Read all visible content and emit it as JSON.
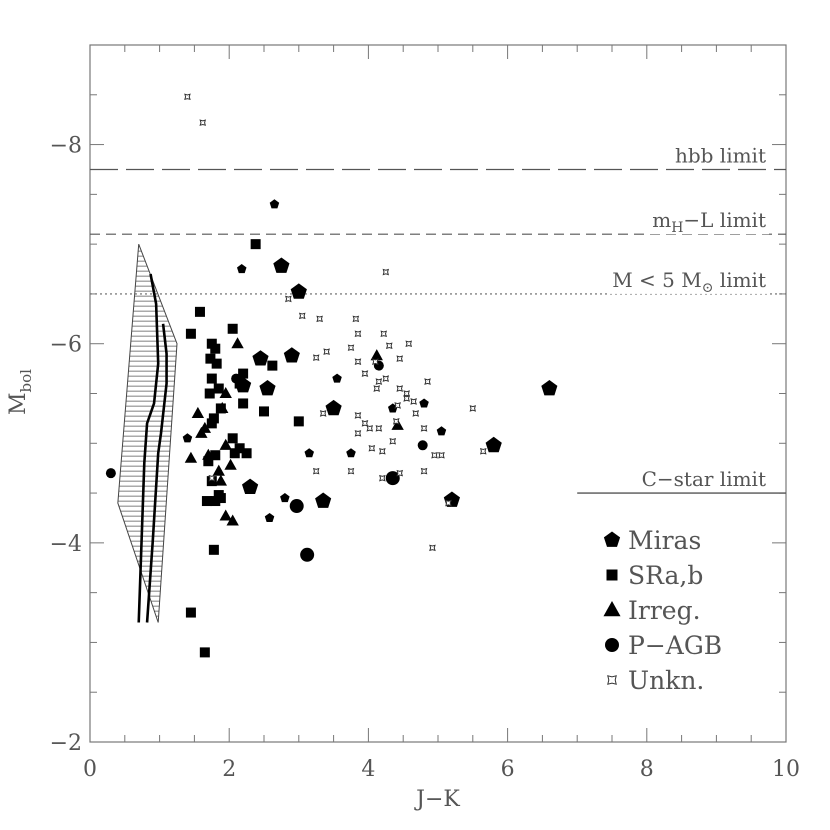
{
  "chart_data": {
    "type": "scatter",
    "xlabel": "J−K",
    "ylabel": {
      "main": "M",
      "sub": "bol"
    },
    "xlim": [
      0,
      10
    ],
    "ylim": [
      -2,
      -9
    ],
    "y_reversed": true,
    "x_ticks": [
      0,
      2,
      4,
      6,
      8,
      10
    ],
    "y_ticks": [
      -2,
      -4,
      -6,
      -8
    ],
    "grid": false,
    "legend_position": "bottom-right",
    "reference_lines": [
      {
        "id": "hbb",
        "label": "hbb limit",
        "y": -7.75,
        "x_range": [
          0,
          10
        ],
        "style": "long-dash"
      },
      {
        "id": "mhl",
        "label_parts": [
          "m",
          "H",
          "−L limit"
        ],
        "y": -7.1,
        "x_range": [
          0,
          10
        ],
        "style": "dash"
      },
      {
        "id": "m5",
        "label_parts": [
          "M < 5 M",
          "⊙",
          " limit"
        ],
        "y": -6.5,
        "x_range": [
          0,
          10
        ],
        "style": "dotted"
      },
      {
        "id": "cstar",
        "label": "C−star limit",
        "y": -4.5,
        "x_range": [
          7.0,
          10
        ],
        "style": "solid"
      }
    ],
    "region": {
      "outline": [
        [
          0.7,
          -7.0
        ],
        [
          1.25,
          -6.0
        ],
        [
          0.98,
          -3.2
        ],
        [
          0.4,
          -4.4
        ]
      ],
      "inner_tracks": [
        [
          [
            0.87,
            -6.7
          ],
          [
            0.95,
            -6.4
          ],
          [
            0.98,
            -5.8
          ],
          [
            0.92,
            -5.4
          ],
          [
            0.82,
            -5.2
          ],
          [
            0.78,
            -4.8
          ],
          [
            0.7,
            -3.2
          ]
        ],
        [
          [
            1.05,
            -6.2
          ],
          [
            1.1,
            -5.9
          ],
          [
            1.1,
            -5.6
          ],
          [
            1.02,
            -5.1
          ],
          [
            0.98,
            -4.9
          ],
          [
            0.9,
            -4.0
          ],
          [
            0.82,
            -3.2
          ]
        ]
      ]
    },
    "series": [
      {
        "name": "Miras",
        "marker": "pentagon",
        "points": [
          [
            2.65,
            -7.4,
            "s"
          ],
          [
            2.18,
            -6.75,
            "s"
          ],
          [
            2.75,
            -6.78,
            "l"
          ],
          [
            3.0,
            -6.52,
            "l"
          ],
          [
            2.45,
            -5.85,
            "l"
          ],
          [
            2.9,
            -5.88,
            "l"
          ],
          [
            2.55,
            -5.55,
            "l"
          ],
          [
            2.2,
            -5.58,
            "l"
          ],
          [
            3.55,
            -5.65,
            "s"
          ],
          [
            3.5,
            -5.35,
            "l"
          ],
          [
            4.35,
            -5.35,
            "s"
          ],
          [
            4.8,
            -5.4,
            "s"
          ],
          [
            5.05,
            -5.12,
            "s"
          ],
          [
            6.6,
            -5.55,
            "l"
          ],
          [
            5.8,
            -4.98,
            "l"
          ],
          [
            1.4,
            -5.05,
            "s"
          ],
          [
            2.3,
            -4.56,
            "l"
          ],
          [
            3.75,
            -4.9,
            "s"
          ],
          [
            3.15,
            -4.9,
            "s"
          ],
          [
            2.8,
            -4.45,
            "s"
          ],
          [
            3.35,
            -4.42,
            "l"
          ],
          [
            2.58,
            -4.25,
            "s"
          ],
          [
            5.2,
            -4.43,
            "l"
          ]
        ]
      },
      {
        "name": "SRa,b",
        "marker": "square",
        "points": [
          [
            2.38,
            -7.0
          ],
          [
            1.58,
            -6.32
          ],
          [
            1.45,
            -6.1
          ],
          [
            2.05,
            -6.15
          ],
          [
            1.75,
            -6.0
          ],
          [
            1.8,
            -5.95
          ],
          [
            1.73,
            -5.85
          ],
          [
            1.82,
            -5.8
          ],
          [
            2.2,
            -5.7
          ],
          [
            1.75,
            -5.65
          ],
          [
            2.15,
            -5.6
          ],
          [
            1.85,
            -5.55
          ],
          [
            1.72,
            -5.5
          ],
          [
            2.2,
            -5.4
          ],
          [
            1.88,
            -5.35
          ],
          [
            2.5,
            -5.32
          ],
          [
            1.78,
            -5.25
          ],
          [
            1.75,
            -5.2
          ],
          [
            3.0,
            -5.22
          ],
          [
            2.05,
            -5.05
          ],
          [
            2.15,
            -4.95
          ],
          [
            2.08,
            -4.9
          ],
          [
            2.25,
            -4.9
          ],
          [
            1.8,
            -4.88
          ],
          [
            1.7,
            -4.82
          ],
          [
            1.75,
            -4.62
          ],
          [
            1.85,
            -4.48
          ],
          [
            1.68,
            -4.42
          ],
          [
            1.8,
            -4.42
          ],
          [
            1.88,
            -4.45
          ],
          [
            1.78,
            -3.93
          ],
          [
            1.45,
            -3.3
          ],
          [
            1.65,
            -2.9
          ],
          [
            2.62,
            -5.78
          ]
        ]
      },
      {
        "name": "Irreg.",
        "marker": "triangle",
        "points": [
          [
            2.12,
            -6.0
          ],
          [
            1.95,
            -5.5
          ],
          [
            1.9,
            -5.35
          ],
          [
            1.55,
            -5.3
          ],
          [
            1.65,
            -5.15
          ],
          [
            1.6,
            -5.1
          ],
          [
            1.95,
            -4.98
          ],
          [
            1.7,
            -4.88
          ],
          [
            1.45,
            -4.85
          ],
          [
            2.02,
            -4.78
          ],
          [
            1.85,
            -4.72
          ],
          [
            1.88,
            -4.62
          ],
          [
            1.95,
            -4.27
          ],
          [
            2.05,
            -4.22
          ],
          [
            4.12,
            -5.88
          ],
          [
            4.42,
            -5.18
          ]
        ]
      },
      {
        "name": "P−AGB",
        "marker": "circle",
        "points": [
          [
            0.3,
            -4.7,
            "s"
          ],
          [
            2.1,
            -5.65,
            "s"
          ],
          [
            4.15,
            -5.78,
            "s"
          ],
          [
            4.78,
            -4.98,
            "s"
          ],
          [
            4.35,
            -4.65,
            "l"
          ],
          [
            2.97,
            -4.37,
            "l"
          ],
          [
            3.12,
            -3.88,
            "l"
          ]
        ]
      },
      {
        "name": "Unkn.",
        "marker": "star",
        "points": [
          [
            1.4,
            -8.48
          ],
          [
            1.62,
            -8.22
          ],
          [
            4.25,
            -6.72
          ],
          [
            2.85,
            -6.45
          ],
          [
            3.05,
            -6.28
          ],
          [
            3.3,
            -6.25
          ],
          [
            3.82,
            -6.25
          ],
          [
            3.85,
            -6.1
          ],
          [
            4.22,
            -6.1
          ],
          [
            4.3,
            -5.98
          ],
          [
            4.58,
            -6.0
          ],
          [
            3.4,
            -5.92
          ],
          [
            3.25,
            -5.86
          ],
          [
            3.75,
            -5.96
          ],
          [
            3.85,
            -5.82
          ],
          [
            4.1,
            -5.82
          ],
          [
            4.45,
            -5.85
          ],
          [
            3.95,
            -5.7
          ],
          [
            4.15,
            -5.62
          ],
          [
            4.25,
            -5.65
          ],
          [
            4.12,
            -5.55
          ],
          [
            4.45,
            -5.55
          ],
          [
            4.55,
            -5.5
          ],
          [
            4.85,
            -5.62
          ],
          [
            4.55,
            -5.45
          ],
          [
            4.65,
            -5.42
          ],
          [
            3.35,
            -5.3
          ],
          [
            3.85,
            -5.28
          ],
          [
            4.42,
            -5.38
          ],
          [
            4.68,
            -5.3
          ],
          [
            5.5,
            -5.35
          ],
          [
            3.95,
            -5.2
          ],
          [
            4.02,
            -5.15
          ],
          [
            4.15,
            -5.15
          ],
          [
            4.4,
            -5.22
          ],
          [
            3.85,
            -5.1
          ],
          [
            4.05,
            -4.95
          ],
          [
            4.35,
            -5.02
          ],
          [
            4.8,
            -5.15
          ],
          [
            4.95,
            -4.88
          ],
          [
            5.05,
            -4.88
          ],
          [
            4.2,
            -4.92
          ],
          [
            5.65,
            -4.92
          ],
          [
            3.25,
            -4.72
          ],
          [
            3.75,
            -4.72
          ],
          [
            4.45,
            -4.7
          ],
          [
            4.8,
            -4.72
          ],
          [
            4.2,
            -4.65
          ],
          [
            1.75,
            -4.65
          ],
          [
            5.15,
            -4.4
          ],
          [
            4.92,
            -3.95
          ]
        ]
      }
    ]
  }
}
